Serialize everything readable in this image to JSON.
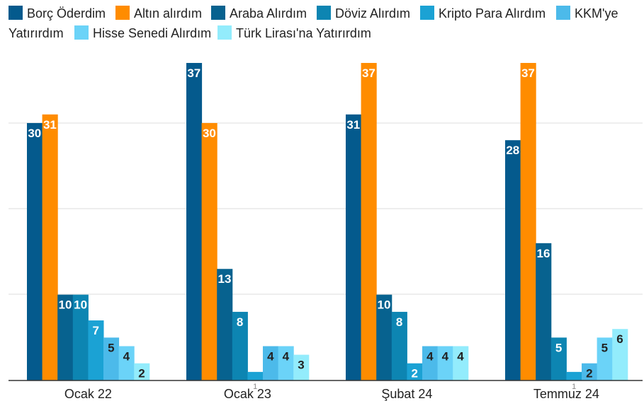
{
  "chart_data": {
    "type": "bar",
    "title": "",
    "xlabel": "",
    "ylabel": "",
    "ylim": [
      0,
      37
    ],
    "grid": true,
    "legend_position": "top",
    "categories": [
      "Ocak 22",
      "Ocak 23",
      "Şubat 24",
      "Temmuz 24"
    ],
    "series": [
      {
        "name": "Borç Öderdim",
        "color": "#045a8d",
        "label_color": "white",
        "values": [
          30,
          37,
          31,
          28
        ]
      },
      {
        "name": "Altın alırdım",
        "color": "#ff8c00",
        "label_color": "white",
        "values": [
          31,
          30,
          37,
          37
        ]
      },
      {
        "name": "Araba Alırdım",
        "color": "#07628f",
        "label_color": "white",
        "values": [
          10,
          13,
          10,
          16
        ]
      },
      {
        "name": "Döviz Alırdım",
        "color": "#0d85b2",
        "label_color": "white",
        "values": [
          10,
          8,
          8,
          5
        ]
      },
      {
        "name": "Kripto Para Alırdım",
        "color": "#1ba2d4",
        "label_color": "white",
        "values": [
          7,
          1,
          2,
          1
        ]
      },
      {
        "name": "KKM'ye Yatırırdım",
        "color": "#4cbaea",
        "label_color": "dark",
        "values": [
          5,
          4,
          4,
          2
        ]
      },
      {
        "name": "Hisse Senedi Alırdım",
        "color": "#6bd3f8",
        "label_color": "dark",
        "values": [
          4,
          4,
          4,
          5
        ]
      },
      {
        "name": "Türk Lirası'na Yatırırdım",
        "color": "#93ecfc",
        "label_color": "dark",
        "values": [
          2,
          3,
          4,
          6
        ]
      }
    ],
    "hidden_labels": [
      {
        "category_index": 1,
        "series_index": 4,
        "text": "1"
      },
      {
        "category_index": 3,
        "series_index": 4,
        "text": "1"
      }
    ]
  }
}
